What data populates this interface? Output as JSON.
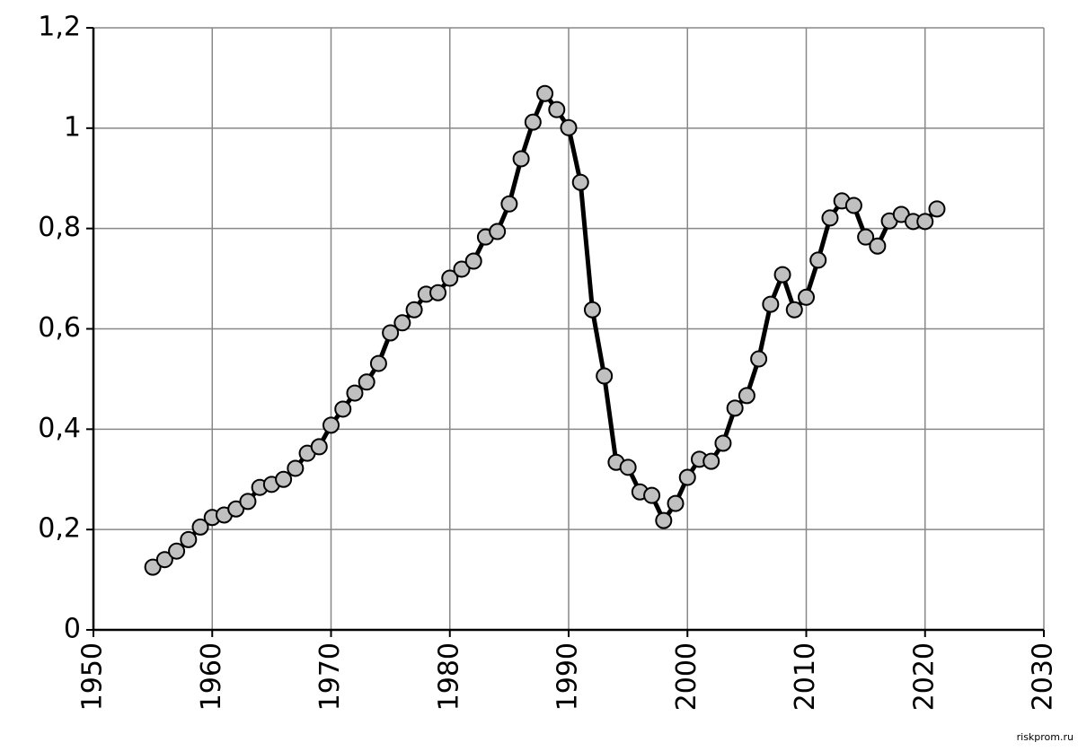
{
  "chart_data": {
    "type": "line",
    "x": [
      1955,
      1956,
      1957,
      1958,
      1959,
      1960,
      1961,
      1962,
      1963,
      1964,
      1965,
      1966,
      1967,
      1968,
      1969,
      1970,
      1971,
      1972,
      1973,
      1974,
      1975,
      1976,
      1977,
      1978,
      1979,
      1980,
      1981,
      1982,
      1983,
      1984,
      1985,
      1986,
      1987,
      1988,
      1989,
      1990,
      1991,
      1992,
      1993,
      1994,
      1995,
      1996,
      1997,
      1998,
      1999,
      2000,
      2001,
      2002,
      2003,
      2004,
      2005,
      2006,
      2007,
      2008,
      2009,
      2010,
      2011,
      2012,
      2013,
      2014,
      2015,
      2016,
      2017,
      2018,
      2019,
      2020,
      2021
    ],
    "series": [
      {
        "name": null,
        "color": "#000000",
        "marker_color": "#c0c0c0",
        "values": [
          0.125,
          0.14,
          0.157,
          0.18,
          0.205,
          0.224,
          0.229,
          0.241,
          0.256,
          0.284,
          0.29,
          0.3,
          0.322,
          0.352,
          0.365,
          0.408,
          0.44,
          0.472,
          0.494,
          0.531,
          0.592,
          0.612,
          0.638,
          0.669,
          0.672,
          0.701,
          0.719,
          0.735,
          0.783,
          0.794,
          0.849,
          0.939,
          1.012,
          1.069,
          1.037,
          1.001,
          0.892,
          0.638,
          0.506,
          0.334,
          0.324,
          0.275,
          0.268,
          0.218,
          0.252,
          0.304,
          0.34,
          0.336,
          0.372,
          0.442,
          0.467,
          0.54,
          0.649,
          0.708,
          0.638,
          0.663,
          0.737,
          0.821,
          0.855,
          0.846,
          0.783,
          0.765,
          0.815,
          0.828,
          0.814,
          0.814,
          0.839
        ]
      }
    ],
    "xlim": [
      1950,
      2030
    ],
    "xticks": [
      1950,
      1960,
      1970,
      1980,
      1990,
      2000,
      2010,
      2020,
      2030
    ],
    "ylim": [
      0,
      1.2
    ],
    "yticks": [
      0,
      {
        "value": 0.2,
        "label": "0,2"
      },
      {
        "value": 0.4,
        "label": "0,4"
      },
      {
        "value": 0.6,
        "label": "0,6"
      },
      {
        "value": 0.8,
        "label": "0,8"
      },
      1,
      {
        "value": 1.2,
        "label": "1,2"
      }
    ],
    "grid": true,
    "watermark": "riskprom.ru"
  }
}
